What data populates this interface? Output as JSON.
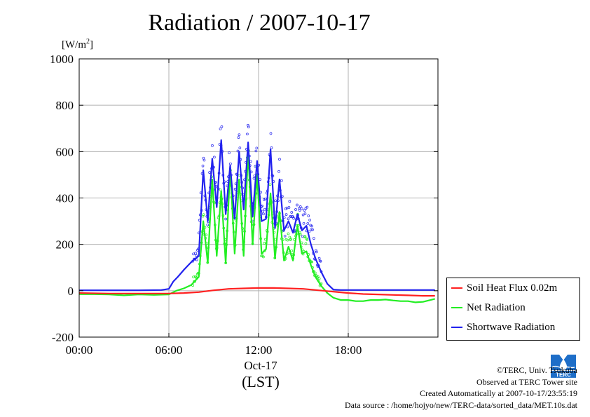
{
  "title": "Radiation / 2007-10-17",
  "unit_base": "[W/m",
  "unit_exp": "2",
  "unit_close": "]",
  "x_date_label": "Oct-17",
  "x_lst_label": "(LST)",
  "credits": {
    "line1": "©TERC, Univ. Tsukuba",
    "line2": "Observed at TERC Tower site",
    "line3": "Created Automatically at 2007-10-17/23:55:19",
    "line4": "Data source : /home/hojyo/new/TERC-data/sorted_data/MET.10s.dat"
  },
  "logo": {
    "text": "TERC",
    "icon": "terc-logo-icon"
  },
  "colors": {
    "soil": "#ff2020",
    "net": "#22ee22",
    "short": "#2222ee"
  },
  "chart_data": {
    "type": "line",
    "title": "Radiation / 2007-10-17",
    "xlabel": "Oct-17 (LST)",
    "ylabel": "[W/m2]",
    "xlim": [
      0,
      24
    ],
    "ylim": [
      -200,
      1000
    ],
    "xticks": [
      {
        "v": 0,
        "label": "00:00"
      },
      {
        "v": 6,
        "label": "06:00"
      },
      {
        "v": 12,
        "label": "12:00"
      },
      {
        "v": 18,
        "label": "18:00"
      }
    ],
    "yticks": [
      -200,
      0,
      200,
      400,
      600,
      800,
      1000
    ],
    "grid": true,
    "legend_position": "right",
    "series": [
      {
        "name": "Soil Heat Flux 0.02m",
        "color": "#ff2020",
        "x": [
          0,
          2,
          4,
          6,
          7,
          8,
          9,
          10,
          11,
          12,
          13,
          14,
          15,
          16,
          17,
          18,
          19,
          20,
          21,
          22,
          23,
          23.8
        ],
        "y": [
          -10,
          -12,
          -12,
          -12,
          -10,
          -6,
          2,
          8,
          10,
          12,
          12,
          10,
          8,
          2,
          -4,
          -10,
          -14,
          -16,
          -18,
          -20,
          -22,
          -22
        ]
      },
      {
        "name": "Net Radiation",
        "color": "#22ee22",
        "x": [
          0,
          1,
          2,
          3,
          4,
          5,
          6,
          6.5,
          7,
          7.5,
          8,
          8.3,
          8.6,
          8.9,
          9.2,
          9.5,
          9.8,
          10.1,
          10.4,
          10.7,
          11,
          11.3,
          11.6,
          11.9,
          12.2,
          12.5,
          12.8,
          13.1,
          13.4,
          13.7,
          14,
          14.3,
          14.6,
          14.9,
          15.2,
          15.5,
          15.8,
          16.2,
          16.6,
          17,
          17.5,
          18,
          18.5,
          19,
          19.5,
          20,
          20.5,
          21,
          21.5,
          22,
          22.5,
          23,
          23.5,
          23.8
        ],
        "y": [
          -15,
          -15,
          -16,
          -20,
          -16,
          -18,
          -16,
          0,
          10,
          25,
          60,
          300,
          120,
          480,
          150,
          430,
          120,
          530,
          160,
          480,
          150,
          600,
          200,
          500,
          160,
          180,
          420,
          140,
          340,
          130,
          190,
          130,
          280,
          160,
          170,
          110,
          60,
          20,
          -10,
          -30,
          -40,
          -40,
          -45,
          -45,
          -40,
          -40,
          -38,
          -42,
          -45,
          -45,
          -50,
          -48,
          -40,
          -35
        ]
      },
      {
        "name": "Shortwave Radiation",
        "color": "#2222ee",
        "x": [
          0,
          2,
          4,
          5.5,
          6,
          6.3,
          6.6,
          7,
          7.3,
          7.6,
          8,
          8.3,
          8.6,
          8.9,
          9.2,
          9.5,
          9.8,
          10.1,
          10.4,
          10.7,
          11,
          11.3,
          11.6,
          11.9,
          12.2,
          12.5,
          12.8,
          13.1,
          13.4,
          13.7,
          14,
          14.3,
          14.6,
          14.9,
          15.2,
          15.5,
          15.8,
          16.2,
          16.6,
          17,
          17.5,
          18,
          19,
          20,
          21,
          22,
          23,
          23.8
        ],
        "y": [
          2,
          2,
          2,
          3,
          8,
          40,
          60,
          90,
          110,
          130,
          150,
          520,
          300,
          570,
          360,
          650,
          330,
          540,
          310,
          600,
          350,
          640,
          320,
          560,
          300,
          310,
          610,
          270,
          480,
          260,
          300,
          250,
          330,
          260,
          280,
          200,
          140,
          80,
          30,
          5,
          3,
          3,
          3,
          3,
          3,
          3,
          3,
          3
        ]
      }
    ]
  }
}
